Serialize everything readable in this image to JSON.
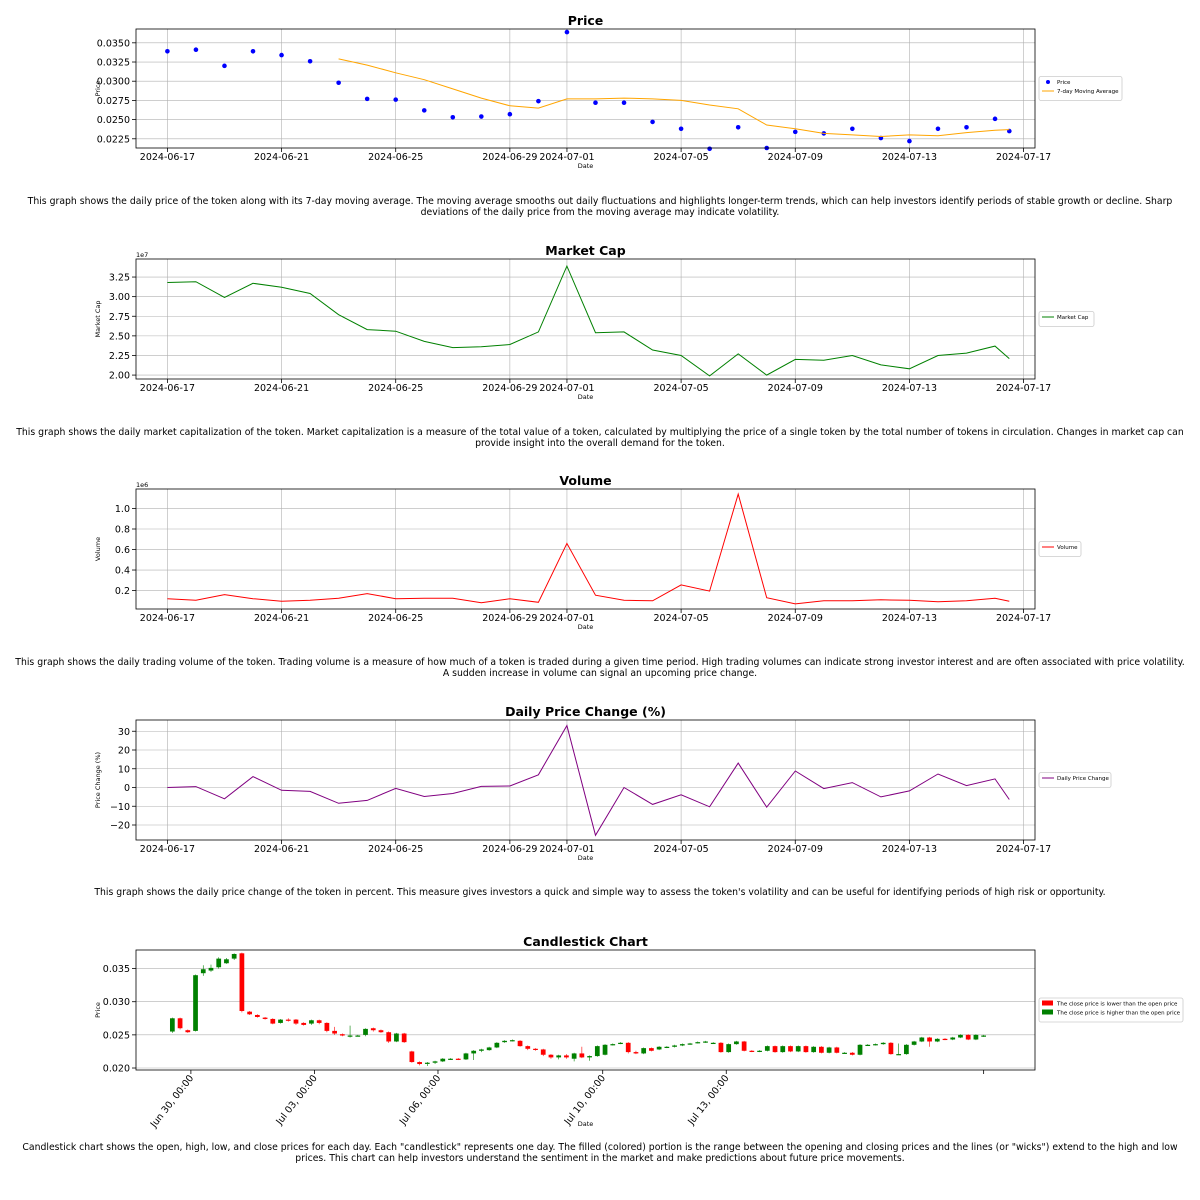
{
  "colors": {
    "price": "#0000ff",
    "ma": "#ffa500",
    "market_cap": "#008000",
    "volume": "#ff0000",
    "daily_change": "#800080",
    "candle_up": "#008000",
    "candle_down": "#ff0000",
    "grid": "#b0b0b0",
    "axis": "#000000"
  },
  "dates": [
    "2024-06-17",
    "2024-06-18",
    "2024-06-19",
    "2024-06-20",
    "2024-06-21",
    "2024-06-22",
    "2024-06-23",
    "2024-06-24",
    "2024-06-25",
    "2024-06-26",
    "2024-06-27",
    "2024-06-28",
    "2024-06-29",
    "2024-06-30",
    "2024-07-01",
    "2024-07-02",
    "2024-07-03",
    "2024-07-04",
    "2024-07-05",
    "2024-07-06",
    "2024-07-07",
    "2024-07-08",
    "2024-07-09",
    "2024-07-10",
    "2024-07-11",
    "2024-07-12",
    "2024-07-13",
    "2024-07-14",
    "2024-07-15",
    "2024-07-16",
    "2024-07-16T12:00"
  ],
  "date_ticks": [
    "2024-06-17",
    "2024-06-21",
    "2024-06-25",
    "2024-06-29",
    "2024-07-01",
    "2024-07-05",
    "2024-07-09",
    "2024-07-13",
    "2024-07-17"
  ],
  "chart_data": [
    {
      "type": "scatter",
      "title": "Price",
      "xlabel": "Date",
      "ylabel": "Price",
      "ylim": [
        0.0213,
        0.0368
      ],
      "yticks": [
        0.0225,
        0.025,
        0.0275,
        0.03,
        0.0325,
        0.035
      ],
      "ytick_labels": [
        "0.0225",
        "0.0250",
        "0.0275",
        "0.0300",
        "0.0325",
        "0.0350"
      ],
      "legend": "right",
      "series": [
        {
          "name": "Price",
          "kind": "scatter",
          "color": "#0000ff",
          "values": [
            0.0339,
            0.0341,
            0.032,
            0.0339,
            0.0334,
            0.0326,
            0.0298,
            0.0277,
            0.0276,
            0.0262,
            0.0253,
            0.0254,
            0.0257,
            0.0274,
            0.0364,
            0.0272,
            0.0272,
            0.0247,
            0.0238,
            0.0212,
            0.024,
            0.0213,
            0.0234,
            0.0232,
            0.0238,
            0.0226,
            0.0222,
            0.0238,
            0.024,
            0.0251,
            0.0235
          ]
        },
        {
          "name": "7-day Moving Average",
          "kind": "line",
          "color": "#ffa500",
          "values": [
            null,
            null,
            null,
            null,
            null,
            null,
            0.0329,
            0.0321,
            0.0311,
            0.0302,
            0.029,
            0.0278,
            0.0268,
            0.0265,
            0.0277,
            0.0277,
            0.0278,
            0.0277,
            0.0275,
            0.0269,
            0.0264,
            0.0243,
            0.0238,
            0.0232,
            0.023,
            0.0228,
            0.023,
            0.0229,
            0.0233,
            0.0236,
            0.0237
          ]
        }
      ]
    },
    {
      "type": "line",
      "title": "Market Cap",
      "xlabel": "Date",
      "ylabel": "Market Cap",
      "scale_note": "1e7",
      "ylim": [
        19500000.0,
        34800000.0
      ],
      "yticks": [
        20000000.0,
        22500000.0,
        25000000.0,
        27500000.0,
        30000000.0,
        32500000.0
      ],
      "ytick_labels": [
        "2.00",
        "2.25",
        "2.50",
        "2.75",
        "3.00",
        "3.25"
      ],
      "legend": "right",
      "series": [
        {
          "name": "Market Cap",
          "color": "#008000",
          "values": [
            31800000.0,
            31900000.0,
            29900000.0,
            31700000.0,
            31200000.0,
            30400000.0,
            27700000.0,
            25800000.0,
            25600000.0,
            24300000.0,
            23500000.0,
            23600000.0,
            23900000.0,
            25500000.0,
            33900000.0,
            25400000.0,
            25500000.0,
            23200000.0,
            22500000.0,
            19900000.0,
            22700000.0,
            20000000.0,
            22000000.0,
            21900000.0,
            22500000.0,
            21300000.0,
            20800000.0,
            22500000.0,
            22800000.0,
            23700000.0,
            22100000.0
          ]
        }
      ]
    },
    {
      "type": "line",
      "title": "Volume",
      "xlabel": "Date",
      "ylabel": "Volume",
      "scale_note": "1e6",
      "ylim": [
        20000.0,
        1190000.0
      ],
      "yticks": [
        200000.0,
        400000.0,
        600000.0,
        800000.0,
        1000000.0
      ],
      "ytick_labels": [
        "0.2",
        "0.4",
        "0.6",
        "0.8",
        "1.0"
      ],
      "legend": "right",
      "series": [
        {
          "name": "Volume",
          "color": "#ff0000",
          "values": [
            120000.0,
            105000.0,
            160000.0,
            120000.0,
            95000.0,
            105000.0,
            125000.0,
            170000.0,
            120000.0,
            125000.0,
            125000.0,
            80000.0,
            120000.0,
            85000.0,
            660000.0,
            155000.0,
            105000.0,
            100000.0,
            255000.0,
            195000.0,
            1140000.0,
            130000.0,
            70000.0,
            100000.0,
            100000.0,
            110000.0,
            105000.0,
            90000.0,
            100000.0,
            125000.0,
            95000.0
          ]
        }
      ]
    },
    {
      "type": "line",
      "title": "Daily Price Change (%)",
      "xlabel": "Date",
      "ylabel": "Price Change (%)",
      "ylim": [
        -28,
        36
      ],
      "yticks": [
        -20,
        -10,
        0,
        10,
        20,
        30
      ],
      "ytick_labels": [
        "−20",
        "−10",
        "0",
        "10",
        "20",
        "30"
      ],
      "legend": "right",
      "series": [
        {
          "name": "Daily Price Change",
          "color": "#800080",
          "values": [
            0.0,
            0.5,
            -6.0,
            5.8,
            -1.5,
            -2.1,
            -8.4,
            -6.9,
            -0.5,
            -4.8,
            -3.2,
            0.6,
            0.8,
            6.8,
            33.0,
            -25.5,
            0.0,
            -9.0,
            -3.9,
            -10.3,
            13.0,
            -10.5,
            8.8,
            -0.6,
            2.6,
            -5.0,
            -1.8,
            7.2,
            1.0,
            4.6,
            -6.4
          ]
        }
      ]
    },
    {
      "type": "candlestick",
      "title": "Candlestick Chart",
      "xlabel": "Date",
      "ylabel": "Price",
      "ylim": [
        0.0197,
        0.0378
      ],
      "yticks": [
        0.02,
        0.025,
        0.03,
        0.035
      ],
      "ytick_labels": [
        "0.020",
        "0.025",
        "0.030",
        "0.035"
      ],
      "x_range_days": [
        0,
        20.3
      ],
      "xticks_days": [
        0,
        3,
        6,
        10,
        13
      ],
      "xtick_labels": [
        "Jun 30, 00:00",
        "Jul 03, 00:00",
        "Jul 06, 00:00",
        "Jul 10, 00:00",
        "Jul 13, 00:00"
      ],
      "legend": "right",
      "legend_entries": [
        {
          "label": "The close price is lower than the open price",
          "color": "#ff0000"
        },
        {
          "label": "The close price is higher than the open price",
          "color": "#008000"
        }
      ],
      "candles": [
        [
          0.0255,
          0.0275,
          0.0253,
          0.0276
        ],
        [
          0.0275,
          0.026,
          0.0258,
          0.0276
        ],
        [
          0.0257,
          0.0254,
          0.0253,
          0.0258
        ],
        [
          0.0256,
          0.034,
          0.0255,
          0.0341
        ],
        [
          0.0343,
          0.0349,
          0.0339,
          0.0355
        ],
        [
          0.0347,
          0.0351,
          0.0345,
          0.0356
        ],
        [
          0.0352,
          0.0365,
          0.035,
          0.0367
        ],
        [
          0.0358,
          0.0364,
          0.0357,
          0.0366
        ],
        [
          0.0365,
          0.0372,
          0.0363,
          0.0373
        ],
        [
          0.0373,
          0.0286,
          0.0284,
          0.0374
        ],
        [
          0.0285,
          0.0281,
          0.028,
          0.0286
        ],
        [
          0.028,
          0.0277,
          0.0276,
          0.0281
        ],
        [
          0.0276,
          0.0274,
          0.0273,
          0.0277
        ],
        [
          0.0274,
          0.0267,
          0.0266,
          0.0275
        ],
        [
          0.0268,
          0.0273,
          0.0267,
          0.0274
        ],
        [
          0.0273,
          0.0272,
          0.027,
          0.0275
        ],
        [
          0.0273,
          0.0267,
          0.0265,
          0.0274
        ],
        [
          0.0268,
          0.0265,
          0.0264,
          0.0269
        ],
        [
          0.0267,
          0.0272,
          0.0265,
          0.0273
        ],
        [
          0.0272,
          0.0268,
          0.0266,
          0.0273
        ],
        [
          0.0268,
          0.0256,
          0.0254,
          0.0269
        ],
        [
          0.0256,
          0.0252,
          0.025,
          0.0262
        ],
        [
          0.0251,
          0.0249,
          0.0248,
          0.0252
        ],
        [
          0.0249,
          0.0249,
          0.0246,
          0.0264
        ],
        [
          0.0249,
          0.0249,
          0.0248,
          0.025
        ],
        [
          0.025,
          0.0259,
          0.0248,
          0.026
        ],
        [
          0.026,
          0.0257,
          0.0255,
          0.0261
        ],
        [
          0.0257,
          0.0254,
          0.0253,
          0.0258
        ],
        [
          0.0254,
          0.024,
          0.0238,
          0.0255
        ],
        [
          0.024,
          0.0252,
          0.0239,
          0.0253
        ],
        [
          0.0252,
          0.0239,
          0.0238,
          0.0253
        ],
        [
          0.0225,
          0.0209,
          0.0208,
          0.0226
        ],
        [
          0.0209,
          0.0206,
          0.0204,
          0.021
        ],
        [
          0.0207,
          0.0208,
          0.0203,
          0.0209
        ],
        [
          0.0208,
          0.021,
          0.0206,
          0.0211
        ],
        [
          0.021,
          0.0214,
          0.0209,
          0.0215
        ],
        [
          0.0214,
          0.0214,
          0.0212,
          0.0215
        ],
        [
          0.0214,
          0.0213,
          0.0212,
          0.0215
        ],
        [
          0.0213,
          0.0222,
          0.0212,
          0.0223
        ],
        [
          0.0222,
          0.0226,
          0.0212,
          0.0227
        ],
        [
          0.0226,
          0.0228,
          0.0224,
          0.0229
        ],
        [
          0.0227,
          0.0231,
          0.0226,
          0.0232
        ],
        [
          0.0231,
          0.0238,
          0.023,
          0.0239
        ],
        [
          0.0239,
          0.0241,
          0.0238,
          0.0242
        ],
        [
          0.0241,
          0.0242,
          0.024,
          0.0243
        ],
        [
          0.0241,
          0.0233,
          0.0232,
          0.0242
        ],
        [
          0.0233,
          0.0229,
          0.0227,
          0.0234
        ],
        [
          0.0229,
          0.0228,
          0.0226,
          0.023
        ],
        [
          0.0228,
          0.022,
          0.0218,
          0.0229
        ],
        [
          0.022,
          0.0216,
          0.0214,
          0.0221
        ],
        [
          0.0216,
          0.0219,
          0.0213,
          0.022
        ],
        [
          0.0219,
          0.0216,
          0.0214,
          0.0221
        ],
        [
          0.0214,
          0.0222,
          0.021,
          0.0223
        ],
        [
          0.0222,
          0.0216,
          0.0215,
          0.0232
        ],
        [
          0.0216,
          0.0218,
          0.0211,
          0.0219
        ],
        [
          0.0218,
          0.0233,
          0.0217,
          0.0234
        ],
        [
          0.022,
          0.0235,
          0.0219,
          0.0236
        ],
        [
          0.0235,
          0.0236,
          0.0234,
          0.0237
        ],
        [
          0.0237,
          0.0238,
          0.0236,
          0.0239
        ],
        [
          0.0238,
          0.0224,
          0.0222,
          0.0239
        ],
        [
          0.0224,
          0.0222,
          0.0221,
          0.0226
        ],
        [
          0.0222,
          0.023,
          0.0221,
          0.0231
        ],
        [
          0.023,
          0.0226,
          0.0225,
          0.0231
        ],
        [
          0.0228,
          0.0232,
          0.0227,
          0.0233
        ],
        [
          0.0231,
          0.0232,
          0.023,
          0.0233
        ],
        [
          0.0232,
          0.0234,
          0.0231,
          0.0235
        ],
        [
          0.0234,
          0.0236,
          0.0233,
          0.0237
        ],
        [
          0.0236,
          0.0237,
          0.0235,
          0.0238
        ],
        [
          0.0238,
          0.0239,
          0.0237,
          0.024
        ],
        [
          0.0239,
          0.024,
          0.0238,
          0.0241
        ],
        [
          0.0238,
          0.0238,
          0.0237,
          0.0239
        ],
        [
          0.0238,
          0.0224,
          0.0223,
          0.0239
        ],
        [
          0.0224,
          0.0236,
          0.0223,
          0.0237
        ],
        [
          0.0236,
          0.024,
          0.0235,
          0.0241
        ],
        [
          0.024,
          0.0226,
          0.0225,
          0.0241
        ],
        [
          0.0226,
          0.0225,
          0.0224,
          0.0227
        ],
        [
          0.0225,
          0.0226,
          0.0224,
          0.0227
        ],
        [
          0.0226,
          0.0233,
          0.0225,
          0.0234
        ],
        [
          0.0233,
          0.0224,
          0.0223,
          0.0234
        ],
        [
          0.0224,
          0.0233,
          0.0223,
          0.0234
        ],
        [
          0.0233,
          0.0225,
          0.0224,
          0.0234
        ],
        [
          0.0225,
          0.0233,
          0.0224,
          0.0234
        ],
        [
          0.0233,
          0.0224,
          0.0223,
          0.0234
        ],
        [
          0.0224,
          0.0232,
          0.0223,
          0.0233
        ],
        [
          0.0232,
          0.0223,
          0.0222,
          0.0233
        ],
        [
          0.0223,
          0.0231,
          0.0222,
          0.0232
        ],
        [
          0.0231,
          0.0223,
          0.0222,
          0.0232
        ],
        [
          0.0223,
          0.0223,
          0.0222,
          0.0224
        ],
        [
          0.0223,
          0.022,
          0.0219,
          0.0224
        ],
        [
          0.022,
          0.0235,
          0.0219,
          0.0236
        ],
        [
          0.0235,
          0.0235,
          0.0234,
          0.0236
        ],
        [
          0.0235,
          0.0236,
          0.0234,
          0.0237
        ],
        [
          0.0236,
          0.0238,
          0.0235,
          0.0239
        ],
        [
          0.0238,
          0.0221,
          0.022,
          0.0239
        ],
        [
          0.0221,
          0.0221,
          0.022,
          0.0237
        ],
        [
          0.0221,
          0.0235,
          0.022,
          0.0236
        ],
        [
          0.0235,
          0.024,
          0.0234,
          0.0241
        ],
        [
          0.024,
          0.0246,
          0.0239,
          0.0247
        ],
        [
          0.0246,
          0.024,
          0.0232,
          0.0247
        ],
        [
          0.024,
          0.0244,
          0.0239,
          0.0245
        ],
        [
          0.0244,
          0.0243,
          0.0242,
          0.0245
        ],
        [
          0.0243,
          0.0246,
          0.0242,
          0.0247
        ],
        [
          0.0246,
          0.025,
          0.0245,
          0.0251
        ],
        [
          0.025,
          0.0243,
          0.0242,
          0.0251
        ],
        [
          0.0243,
          0.025,
          0.0242,
          0.0251
        ],
        [
          0.0248,
          0.0249,
          0.0247,
          0.025
        ]
      ]
    }
  ],
  "captions": [
    "This graph shows the daily price of the token along with its 7-day moving average. The moving average smooths out daily fluctuations and highlights longer-term trends, which can help investors identify periods of stable growth or decline. Sharp deviations of the daily price from the moving average may indicate volatility.",
    "This graph shows the daily market capitalization of the token. Market capitalization is a measure of the total value of a token, calculated by multiplying the price of a single token by the total number of tokens in circulation. Changes in market cap can provide insight into the overall demand for the token.",
    "This graph shows the daily trading volume of the token. Trading volume is a measure of how much of a token is traded during a given time period. High trading volumes can indicate strong investor interest and are often associated with price volatility. A sudden increase in volume can signal an upcoming price change.",
    "This graph shows the daily price change of the token in percent. This measure gives investors a quick and simple way to assess the token's volatility and can be useful for identifying periods of high risk or opportunity.",
    "Candlestick chart shows the open, high, low, and close prices for each day. Each \"candlestick\" represents one day. The filled (colored) portion is the range between the opening and closing prices and the lines (or \"wicks\") extend to the high and low prices. This chart can help investors understand the sentiment in the market and make predictions about future price movements."
  ]
}
